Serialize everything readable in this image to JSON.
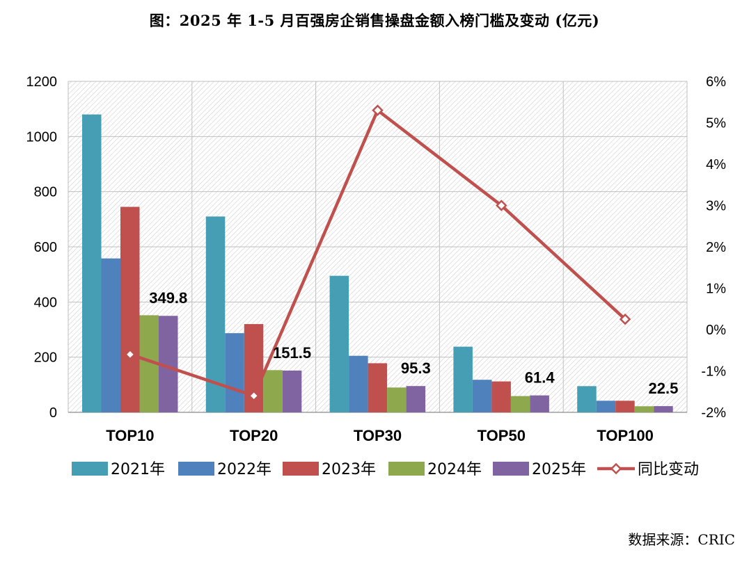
{
  "title": "图：2025 年 1-5 月百强房企销售操盘金额入榜门槛及变动 (亿元)",
  "source": "数据来源：CRIC",
  "colors": {
    "s2021": "#469EB4",
    "s2022": "#4F81BD",
    "s2023": "#C0504D",
    "s2024": "#8EA84E",
    "s2025": "#8064A2",
    "line": "#C0504D"
  },
  "chart_data": {
    "type": "bar",
    "categories": [
      "TOP10",
      "TOP20",
      "TOP30",
      "TOP50",
      "TOP100"
    ],
    "series": [
      {
        "name": "2021年",
        "values": [
          1080,
          710,
          495,
          238,
          95
        ]
      },
      {
        "name": "2022年",
        "values": [
          558,
          287,
          205,
          118,
          42
        ]
      },
      {
        "name": "2023年",
        "values": [
          745,
          320,
          178,
          112,
          42
        ]
      },
      {
        "name": "2024年",
        "values": [
          352,
          153,
          90,
          59,
          22
        ]
      },
      {
        "name": "2025年",
        "values": [
          349.8,
          151.5,
          95.3,
          61.4,
          22.5
        ]
      }
    ],
    "line_series": {
      "name": "同比变动",
      "axis": "right",
      "values": [
        -0.6,
        -1.6,
        5.3,
        3.0,
        0.25
      ]
    },
    "data_labels": [
      "349.8",
      "151.5",
      "95.3",
      "61.4",
      "22.5"
    ],
    "ylim": [
      0,
      1200
    ],
    "y_ticks": [
      "0",
      "200",
      "400",
      "600",
      "800",
      "1000",
      "1200"
    ],
    "y2lim": [
      -2,
      6
    ],
    "y2_ticks": [
      "-2%",
      "-1%",
      "0%",
      "1%",
      "2%",
      "3%",
      "4%",
      "5%",
      "6%"
    ],
    "grid": true,
    "legend": "bottom"
  }
}
